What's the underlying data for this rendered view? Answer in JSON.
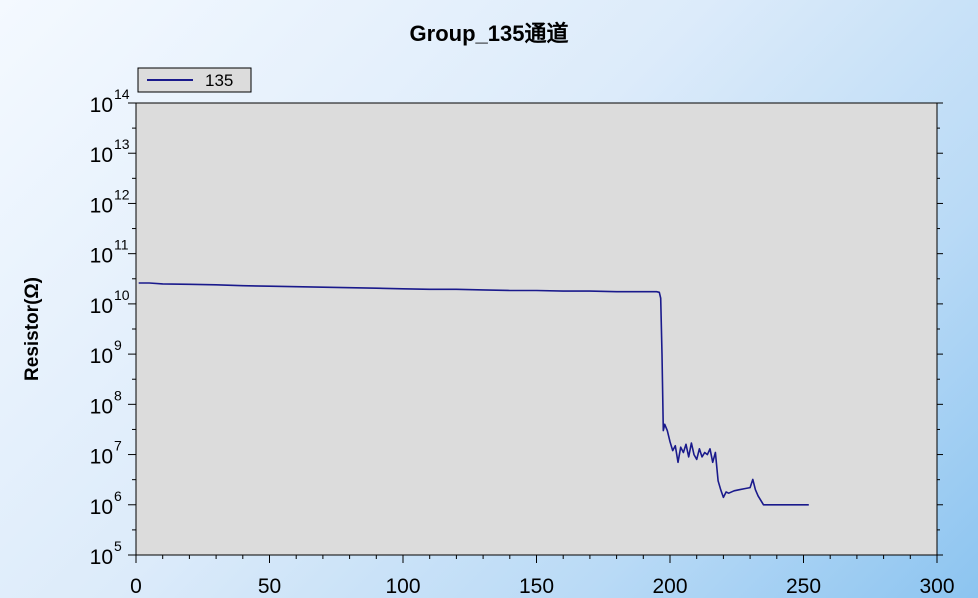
{
  "chart_data": {
    "type": "line",
    "title": "Group_135通道",
    "xlabel": "",
    "ylabel": "Resistor(Ω)",
    "xlim": [
      0,
      300
    ],
    "ylim": [
      100000.0,
      100000000000000.0
    ],
    "yscale": "log",
    "grid": false,
    "legend_position": "top-left",
    "x_ticks": [
      0,
      50,
      100,
      150,
      200,
      250,
      300
    ],
    "y_tick_base": "10",
    "y_tick_exponents": [
      "5",
      "6",
      "7",
      "8",
      "9",
      "10",
      "11",
      "12",
      "13",
      "14"
    ],
    "plot_background": "#dcdcdc",
    "series": [
      {
        "name": "135",
        "color": "#1a1a8c",
        "x": [
          1,
          5,
          10,
          20,
          30,
          40,
          50,
          60,
          70,
          80,
          90,
          100,
          110,
          120,
          130,
          140,
          150,
          160,
          170,
          180,
          190,
          195,
          196,
          196.5,
          197,
          197.5,
          198,
          199,
          200,
          201,
          202,
          203,
          204,
          205,
          206,
          207,
          208,
          209,
          210,
          211,
          212,
          213,
          214,
          215,
          216,
          217,
          218,
          219,
          220,
          221,
          222,
          224,
          226,
          228,
          230,
          231,
          232,
          233,
          235,
          240,
          245,
          250,
          252
        ],
        "y": [
          26000000000.0,
          26000000000.0,
          25000000000.0,
          24500000000.0,
          24000000000.0,
          23000000000.0,
          22500000000.0,
          22000000000.0,
          21500000000.0,
          21000000000.0,
          20500000000.0,
          20000000000.0,
          19500000000.0,
          19500000000.0,
          19000000000.0,
          18500000000.0,
          18500000000.0,
          18000000000.0,
          18000000000.0,
          17500000000.0,
          17500000000.0,
          17500000000.0,
          17000000000.0,
          13000000000.0,
          1000000000.0,
          30000000.0,
          40000000.0,
          30000000.0,
          18000000.0,
          12000000.0,
          15000000.0,
          7000000.0,
          14000000.0,
          11000000.0,
          16000000.0,
          9000000.0,
          17000000.0,
          10000000.0,
          8000000.0,
          13000000.0,
          9000000.0,
          11000000.0,
          10000000.0,
          13000000.0,
          7000000.0,
          11000000.0,
          3000000.0,
          2000000.0,
          1400000.0,
          1800000.0,
          1700000.0,
          1900000.0,
          2000000.0,
          2100000.0,
          2200000.0,
          3200000.0,
          2000000.0,
          1500000.0,
          1000000.0,
          1000000.0,
          1000000.0,
          1000000.0,
          1000000.0
        ]
      }
    ]
  }
}
